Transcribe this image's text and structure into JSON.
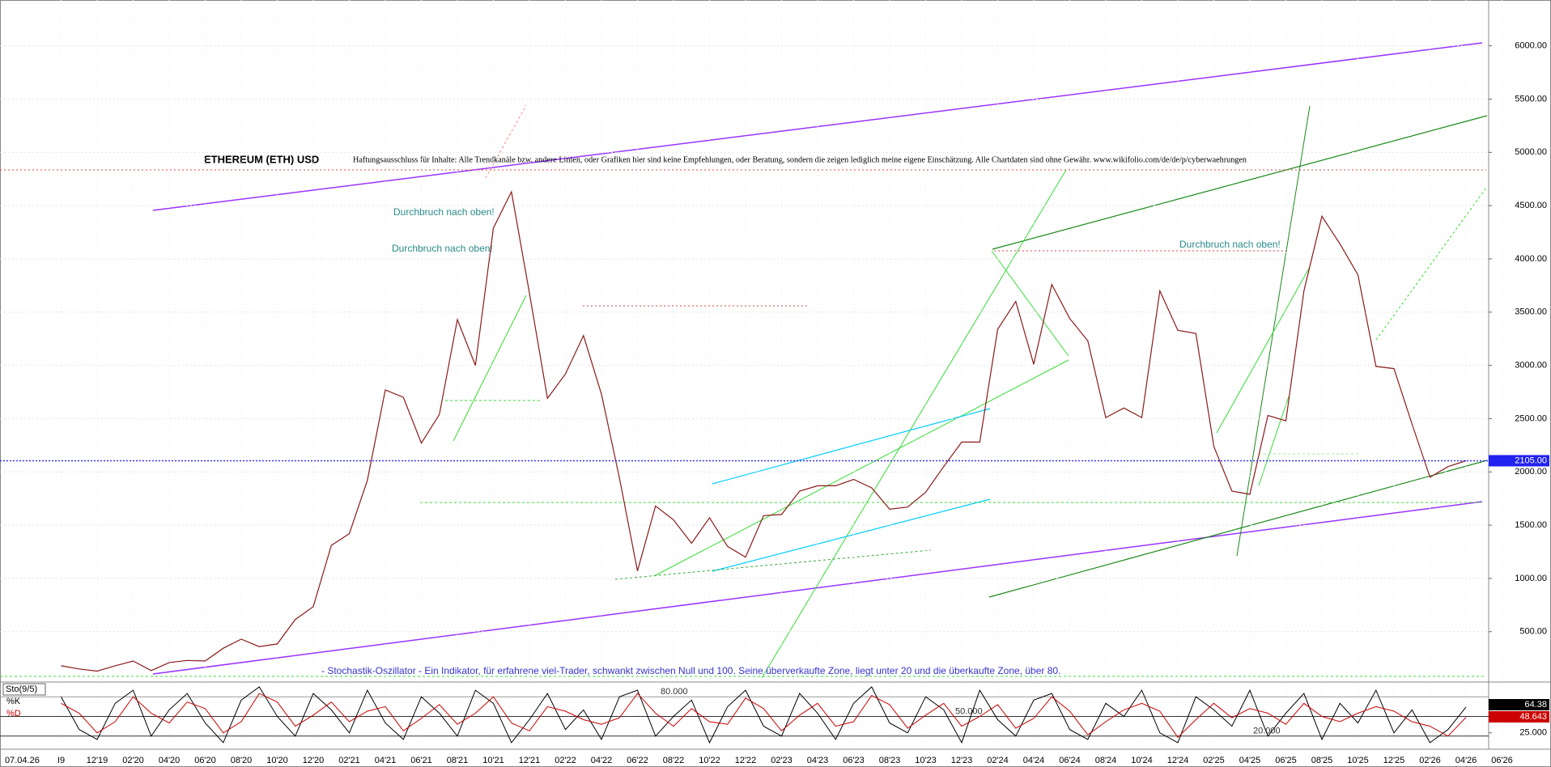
{
  "chart_data": [
    {
      "type": "line",
      "title": "ETHEREUM (ETH) USD",
      "disclaimer": "Haftungsausschluss für Inhalte: Alle Trendkanäle bzw. andere Linien, oder Grafiken hier sind keine Empfehlungen, oder Beratung, sondern die zeigen lediglich meine eigene Einschätzung. Alle Chartdaten sind ohne Gewähr. www.wikifolio.com/de/de/p/cyberwaehrungen",
      "annotations": [
        "Durchbruch nach oben!",
        "Durchbruch nach oben!",
        "Durchbruch nach oben!"
      ],
      "note": "- Stochastik-Oszillator - Ein Indikator, für erfahrene viel-Trader, schwankt zwischen Null und 100. Seine überverkaufte Zone, liegt unter 20 und die überkaufte Zone, über 80.",
      "date_label": "07.04.26",
      "categories": [
        "I9",
        null,
        "12'19",
        null,
        "02'20",
        null,
        "04'20",
        null,
        "06'20",
        null,
        "08'20",
        null,
        "10'20",
        null,
        "12'20",
        null,
        "02'21",
        null,
        "04'21",
        null,
        "06'21",
        null,
        "08'21",
        null,
        "10'21",
        null,
        "12'21",
        null,
        "02'22",
        null,
        "04'22",
        null,
        "06'22",
        null,
        "08'22",
        null,
        "10'22",
        null,
        "12'22",
        null,
        "02'23",
        null,
        "04'23",
        null,
        "06'23",
        null,
        "08'23",
        null,
        "10'23",
        null,
        "12'23",
        null,
        "02'24",
        null,
        "04'24",
        null,
        "06'24",
        null,
        "08'24",
        null,
        "10'24",
        null,
        "12'24",
        null,
        "02'25",
        null,
        "04'25",
        null,
        "06'25",
        null,
        "08'25",
        null,
        "10'25",
        null,
        "12'25",
        null,
        "02'26",
        null,
        "04'26",
        null,
        "06'26"
      ],
      "series": [
        {
          "name": "ETH",
          "color": "#8b1a1a",
          "values": [
            180,
            150,
            130,
            180,
            225,
            135,
            210,
            230,
            225,
            345,
            430,
            360,
            385,
            615,
            735,
            1310,
            1420,
            1920,
            2770,
            2700,
            2270,
            2540,
            3430,
            3000,
            4290,
            4630,
            3680,
            2690,
            2920,
            3280,
            2730,
            1940,
            1070,
            1680,
            1550,
            1330,
            1570,
            1300,
            1200,
            1590,
            1600,
            1820,
            1870,
            1870,
            1930,
            1850,
            1650,
            1670,
            1810,
            2050,
            2280,
            2280,
            3340,
            3600,
            3010,
            3760,
            3440,
            3230,
            2510,
            2600,
            2510,
            3700,
            3330,
            3300,
            2240,
            1820,
            1790,
            2530,
            2480,
            3700,
            4400,
            4140,
            3850,
            2990,
            2970,
            2450,
            1950,
            2050,
            2105,
            null,
            null
          ]
        }
      ],
      "current": {
        "value": 2105,
        "label": "2105.00"
      },
      "ylim": [
        50,
        6400
      ],
      "yticks": [
        {
          "value": 500,
          "label": "500.00"
        },
        {
          "value": 1000,
          "label": "1000.00"
        },
        {
          "value": 1500,
          "label": "1500.00"
        },
        {
          "value": 2000,
          "label": "2000.00"
        },
        {
          "value": 2500,
          "label": "2500.00"
        },
        {
          "value": 3000,
          "label": "3000.00"
        },
        {
          "value": 3500,
          "label": "3500.00"
        },
        {
          "value": 4000,
          "label": "4000.00"
        },
        {
          "value": 4500,
          "label": "4500.00"
        },
        {
          "value": 5000,
          "label": "5000.00"
        },
        {
          "value": 5500,
          "label": "5500.00"
        },
        {
          "value": 6000,
          "label": "6000.00"
        }
      ],
      "grid": true
    },
    {
      "type": "line",
      "title": "Sto(9/5)",
      "series": [
        {
          "name": "%K",
          "color": "#000000",
          "values": [
            80,
            30,
            15,
            70,
            90,
            20,
            60,
            85,
            40,
            10,
            75,
            95,
            50,
            20,
            85,
            60,
            25,
            90,
            40,
            15,
            80,
            55,
            20,
            90,
            70,
            10,
            45,
            85,
            30,
            60,
            15,
            80,
            90,
            20,
            50,
            75,
            10,
            65,
            90,
            35,
            20,
            85,
            55,
            15,
            70,
            95,
            40,
            25,
            80,
            60,
            10,
            90,
            45,
            20,
            75,
            85,
            30,
            15,
            70,
            50,
            90,
            25,
            10,
            80,
            60,
            35,
            90,
            20,
            55,
            85,
            15,
            70,
            40,
            90,
            25,
            60,
            10,
            30,
            64.38,
            null,
            null
          ],
          "last": {
            "value": 64.38,
            "label": "64.38"
          }
        },
        {
          "name": "%D",
          "color": "#cc0000",
          "values": [
            70,
            55,
            25,
            42,
            80,
            55,
            40,
            72,
            62,
            25,
            42,
            85,
            72,
            35,
            52,
            72,
            42,
            58,
            65,
            28,
            47,
            68,
            38,
            55,
            80,
            40,
            28,
            65,
            58,
            45,
            38,
            48,
            85,
            55,
            35,
            62,
            42,
            38,
            78,
            62,
            28,
            52,
            70,
            35,
            42,
            82,
            68,
            32,
            52,
            70,
            35,
            50,
            68,
            32,
            47,
            80,
            58,
            22,
            42,
            60,
            70,
            58,
            18,
            45,
            70,
            48,
            62,
            55,
            38,
            70,
            50,
            42,
            55,
            65,
            58,
            42,
            35,
            20,
            48.643,
            null,
            null
          ],
          "last": {
            "value": 48.643,
            "label": "48.643"
          }
        }
      ],
      "levels": [
        {
          "value": 80,
          "label": "80.000"
        },
        {
          "value": 50,
          "label": "50.000"
        },
        {
          "value": 20,
          "label": "20.000"
        }
      ],
      "ylim": [
        0,
        100
      ],
      "yticks": [
        {
          "value": 25,
          "label": "25.000"
        }
      ]
    }
  ]
}
